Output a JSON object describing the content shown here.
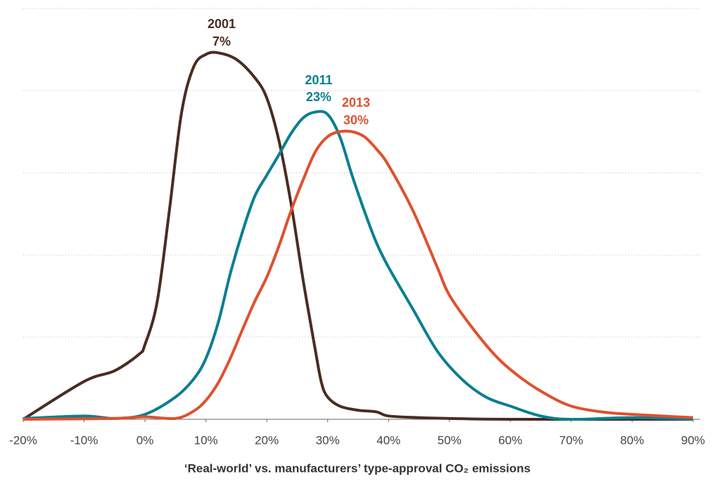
{
  "chart_data": {
    "type": "line",
    "xlabel": "‘Real-world’ vs. manufacturers’ type-approval CO₂ emissions",
    "xlim": [
      -20,
      90
    ],
    "xticks": [
      {
        "value": -20,
        "label": "-20%"
      },
      {
        "value": -10,
        "label": "-10%"
      },
      {
        "value": 0,
        "label": "0%"
      },
      {
        "value": 10,
        "label": "10%"
      },
      {
        "value": 20,
        "label": "20%"
      },
      {
        "value": 30,
        "label": "30%"
      },
      {
        "value": 40,
        "label": "40%"
      },
      {
        "value": 50,
        "label": "50%"
      },
      {
        "value": 60,
        "label": "60%"
      },
      {
        "value": 70,
        "label": "70%"
      },
      {
        "value": 80,
        "label": "80%"
      },
      {
        "value": 90,
        "label": "90%"
      }
    ],
    "ylim": [
      0,
      5
    ],
    "yticks": [
      0,
      1,
      2,
      3,
      4,
      5
    ],
    "grid": true,
    "series": [
      {
        "name": "2001",
        "annotation": "7%",
        "color": "#4a2c22",
        "x": [
          -20,
          -10,
          -5,
          -1,
          0,
          2,
          4,
          6,
          8,
          10,
          12,
          15,
          18,
          20,
          22,
          24,
          26,
          28,
          29,
          30,
          32,
          35,
          38,
          40,
          45,
          50,
          60,
          90
        ],
        "values": [
          0,
          0.46,
          0.59,
          0.79,
          0.91,
          1.43,
          2.54,
          3.73,
          4.29,
          4.44,
          4.46,
          4.38,
          4.16,
          3.91,
          3.39,
          2.62,
          1.68,
          0.83,
          0.44,
          0.27,
          0.16,
          0.11,
          0.09,
          0.04,
          0.02,
          0.01,
          0,
          0
        ]
      },
      {
        "name": "2011",
        "annotation": "23%",
        "color": "#0a7f92",
        "x": [
          -20,
          -10,
          -5,
          0,
          5,
          8,
          10,
          12,
          14,
          16,
          18,
          20,
          22,
          24,
          26,
          28,
          30,
          32,
          34,
          36,
          38,
          40,
          44,
          48,
          52,
          56,
          60,
          65,
          70,
          80,
          90
        ],
        "values": [
          0.01,
          0.04,
          0.01,
          0.06,
          0.27,
          0.49,
          0.74,
          1.17,
          1.77,
          2.28,
          2.71,
          2.97,
          3.22,
          3.48,
          3.67,
          3.74,
          3.71,
          3.44,
          2.97,
          2.54,
          2.15,
          1.85,
          1.34,
          0.83,
          0.49,
          0.27,
          0.16,
          0.04,
          0,
          0.02,
          0
        ]
      },
      {
        "name": "2013",
        "annotation": "30%",
        "color": "#e0502e",
        "x": [
          -20,
          -5,
          0,
          5,
          8,
          10,
          12,
          14,
          16,
          18,
          20,
          22,
          24,
          26,
          28,
          30,
          32,
          34,
          36,
          38,
          40,
          44,
          48,
          50,
          54,
          58,
          62,
          66,
          70,
          75,
          80,
          85,
          90
        ],
        "values": [
          0,
          0.01,
          0.03,
          0.01,
          0.1,
          0.23,
          0.44,
          0.74,
          1.09,
          1.43,
          1.73,
          2.11,
          2.54,
          2.92,
          3.26,
          3.44,
          3.5,
          3.5,
          3.44,
          3.29,
          3.09,
          2.54,
          1.85,
          1.51,
          1.09,
          0.74,
          0.49,
          0.3,
          0.16,
          0.09,
          0.06,
          0.04,
          0.02
        ]
      }
    ]
  }
}
